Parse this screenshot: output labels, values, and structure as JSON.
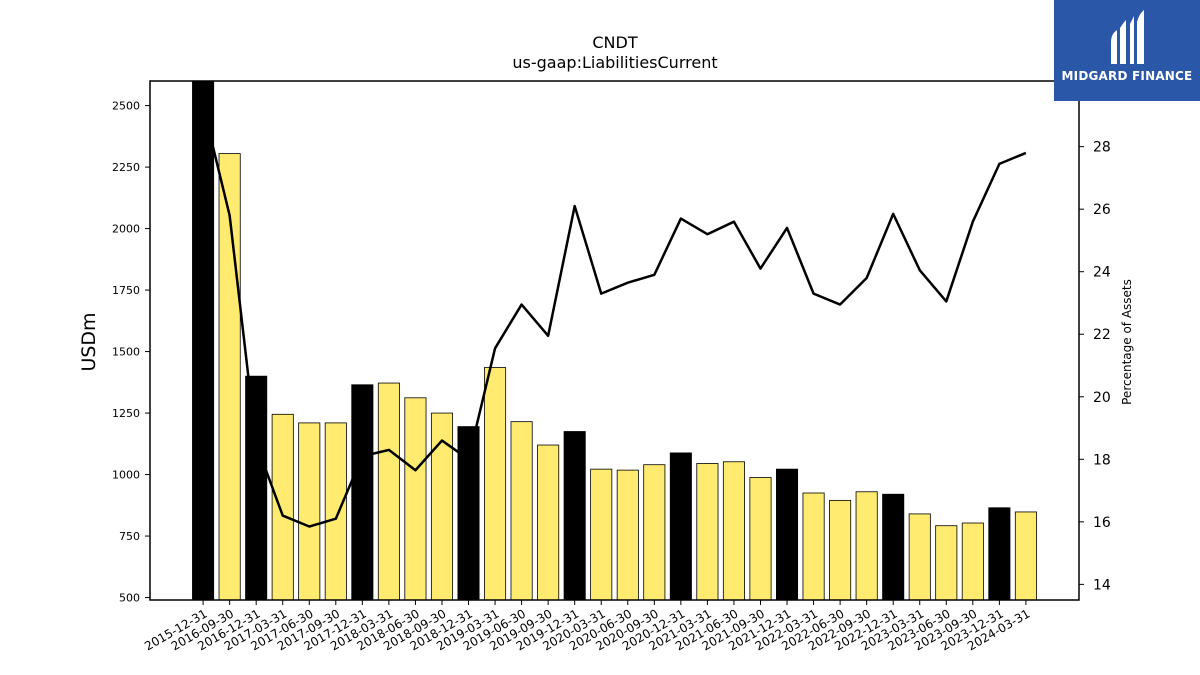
{
  "chart_data": {
    "type": "bar",
    "title": "CNDT",
    "subtitle": "us-gaap:LiabilitiesCurrent",
    "ylabel": "USDm",
    "y2label": "Percentage of Assets",
    "ylim": [
      490,
      2600
    ],
    "y2lim": [
      13.5,
      30.1
    ],
    "yticks": [
      "500",
      "750",
      "1000",
      "1250",
      "1500",
      "1750",
      "2000",
      "2250",
      "2500"
    ],
    "y2ticks": [
      "14",
      "16",
      "18",
      "20",
      "22",
      "24",
      "26",
      "28"
    ],
    "categories": [
      "2015-12-31",
      "2016-09-30",
      "2016-12-31",
      "2017-03-31",
      "2017-06-30",
      "2017-09-30",
      "2017-12-31",
      "2018-03-31",
      "2018-06-30",
      "2018-09-30",
      "2018-12-31",
      "2019-03-31",
      "2019-06-30",
      "2019-09-30",
      "2019-12-31",
      "2020-03-31",
      "2020-06-30",
      "2020-09-30",
      "2020-12-31",
      "2021-03-31",
      "2021-06-30",
      "2021-09-30",
      "2021-12-31",
      "2022-03-31",
      "2022-06-30",
      "2022-09-30",
      "2022-12-31",
      "2023-03-31",
      "2023-06-30",
      "2023-09-30",
      "2023-12-31",
      "2024-03-31"
    ],
    "series": [
      {
        "kind": "bar",
        "values": [
          2610,
          2305,
          1400,
          1245,
          1210,
          1210,
          1365,
          1372,
          1312,
          1250,
          1195,
          1435,
          1215,
          1120,
          1175,
          1022,
          1018,
          1040,
          1088,
          1045,
          1052,
          988,
          1022,
          925,
          895,
          930,
          920,
          840,
          792,
          803,
          865,
          848
        ],
        "colors": [
          "#000000",
          "#ffeb70",
          "#000000",
          "#ffeb70",
          "#ffeb70",
          "#ffeb70",
          "#000000",
          "#ffeb70",
          "#ffeb70",
          "#ffeb70",
          "#000000",
          "#ffeb70",
          "#ffeb70",
          "#ffeb70",
          "#000000",
          "#ffeb70",
          "#ffeb70",
          "#ffeb70",
          "#000000",
          "#ffeb70",
          "#ffeb70",
          "#ffeb70",
          "#000000",
          "#ffeb70",
          "#ffeb70",
          "#ffeb70",
          "#000000",
          "#ffeb70",
          "#ffeb70",
          "#ffeb70",
          "#000000",
          "#ffeb70"
        ]
      },
      {
        "kind": "line",
        "axis": "right",
        "values": [
          29.3,
          25.8,
          18.5,
          16.2,
          15.85,
          16.1,
          18.1,
          18.3,
          17.65,
          18.6,
          18.0,
          21.55,
          22.95,
          21.95,
          26.1,
          23.3,
          23.65,
          23.9,
          25.7,
          25.2,
          25.6,
          24.1,
          25.4,
          23.3,
          22.95,
          23.8,
          25.85,
          24.05,
          23.05,
          25.6,
          27.45,
          27.8
        ]
      }
    ],
    "colors": {
      "bar_primary": "#000000",
      "bar_secondary": "#ffeb70",
      "line": "#000000"
    },
    "grid": false,
    "legend": "none"
  },
  "logo": {
    "text": "MIDGARD FINANCE",
    "background": "#2b57a8"
  }
}
